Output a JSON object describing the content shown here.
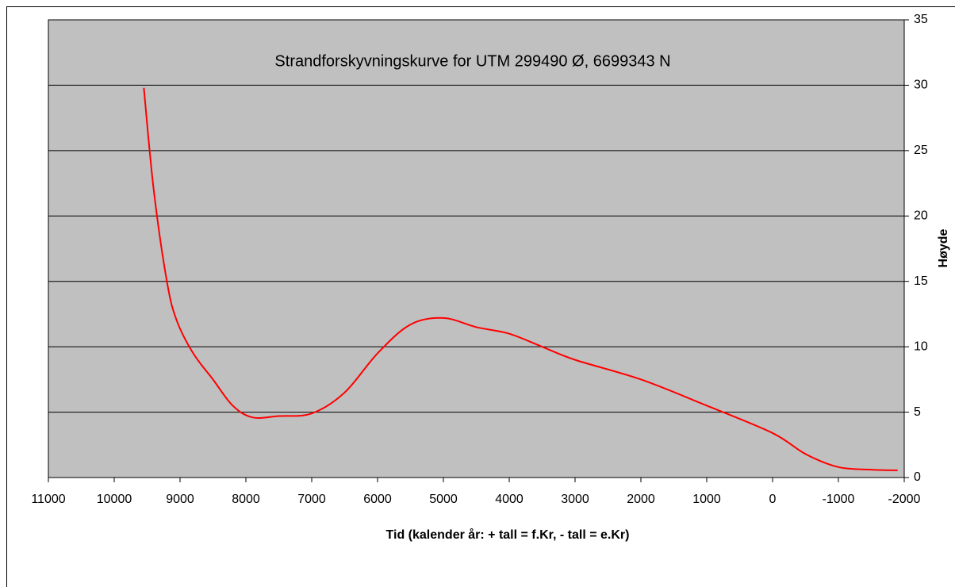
{
  "chart_data": {
    "type": "line",
    "title": "Strandforskyvningskurve for UTM 299490 Ø, 6699343 N",
    "xlabel": "Tid (kalender år:  + tall = f.Kr, - tall = e.Kr)",
    "ylabel": "Høyde",
    "x": [
      9550,
      9400,
      9200,
      9050,
      8800,
      8500,
      8200,
      7900,
      7500,
      7000,
      6500,
      6000,
      5500,
      5000,
      4500,
      4000,
      3500,
      3000,
      2000,
      1000,
      0,
      -500,
      -1000,
      -1500,
      -1900
    ],
    "series": [
      {
        "name": "Høyde",
        "color": "#ff0000",
        "values": [
          29.8,
          22,
          15,
          12,
          9.5,
          7.5,
          5.5,
          4.6,
          4.7,
          4.9,
          6.5,
          9.5,
          11.7,
          12.2,
          11.5,
          11,
          10,
          9,
          7.5,
          5.5,
          3.4,
          1.8,
          0.8,
          0.6,
          0.55
        ]
      }
    ],
    "xlim": [
      11000,
      -2000
    ],
    "xticks": [
      11000,
      10000,
      9000,
      8000,
      7000,
      6000,
      5000,
      4000,
      3000,
      2000,
      1000,
      0,
      -1000,
      -2000
    ],
    "ylim": [
      0,
      35
    ],
    "yticks": [
      0,
      5,
      10,
      15,
      20,
      25,
      30,
      35
    ],
    "y_axis_side": "right",
    "grid": true,
    "plot_background": "#c0c0c0"
  }
}
